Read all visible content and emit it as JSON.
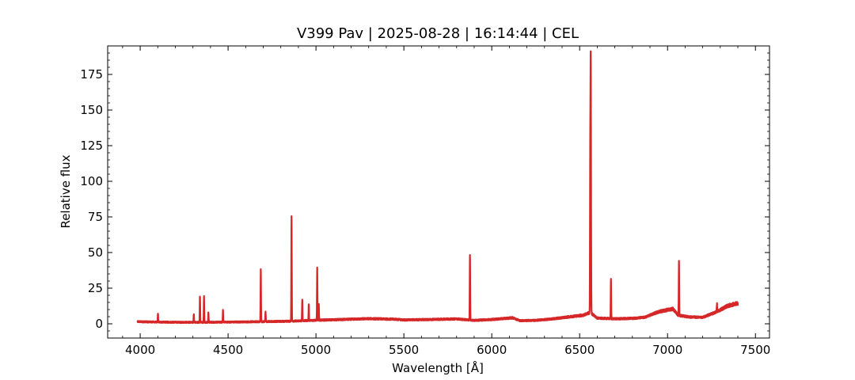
{
  "chart_data": {
    "type": "line",
    "title": "V399 Pav | 2025-08-28 | 16:14:44 | CEL",
    "xlabel": "Wavelength [Å]",
    "ylabel": "Relative flux",
    "xlim": [
      3815,
      7580
    ],
    "ylim": [
      -10,
      195
    ],
    "xticks": [
      4000,
      4500,
      5000,
      5500,
      6000,
      6500,
      7000,
      7500
    ],
    "yticks": [
      0,
      25,
      50,
      75,
      100,
      125,
      150,
      175
    ],
    "grid": false,
    "legend": "none",
    "series_color": "#d62728",
    "continuum": [
      [
        3985,
        1.5
      ],
      [
        4100,
        1.2
      ],
      [
        4300,
        1.0
      ],
      [
        4500,
        1.2
      ],
      [
        4700,
        1.5
      ],
      [
        4850,
        1.8
      ],
      [
        5000,
        2.5
      ],
      [
        5150,
        3.0
      ],
      [
        5300,
        3.6
      ],
      [
        5450,
        3.2
      ],
      [
        5500,
        2.7
      ],
      [
        5650,
        3.0
      ],
      [
        5800,
        3.4
      ],
      [
        5900,
        2.4
      ],
      [
        6000,
        3.0
      ],
      [
        6120,
        4.2
      ],
      [
        6160,
        2.2
      ],
      [
        6250,
        2.4
      ],
      [
        6350,
        3.5
      ],
      [
        6450,
        5.0
      ],
      [
        6520,
        6.0
      ],
      [
        6560,
        8.0
      ],
      [
        6600,
        4.0
      ],
      [
        6700,
        3.5
      ],
      [
        6800,
        3.8
      ],
      [
        6870,
        4.5
      ],
      [
        6950,
        8.5
      ],
      [
        7030,
        10.5
      ],
      [
        7060,
        6.0
      ],
      [
        7120,
        4.8
      ],
      [
        7200,
        4.5
      ],
      [
        7280,
        8.5
      ],
      [
        7340,
        12.5
      ],
      [
        7400,
        14.5
      ]
    ],
    "emission_lines": [
      [
        4101,
        7
      ],
      [
        4305,
        7
      ],
      [
        4340,
        19.5
      ],
      [
        4363,
        19.5
      ],
      [
        4388,
        8
      ],
      [
        4471,
        9.5
      ],
      [
        4686,
        38
      ],
      [
        4713,
        8.5
      ],
      [
        4861,
        75.5
      ],
      [
        4922,
        17.5
      ],
      [
        4959,
        13.5
      ],
      [
        5007,
        39
      ],
      [
        5016,
        14
      ],
      [
        5876,
        48
      ],
      [
        6560,
        94
      ],
      [
        6563,
        187
      ],
      [
        6678,
        31.5
      ],
      [
        7065,
        43.5
      ],
      [
        7281,
        14
      ]
    ]
  }
}
